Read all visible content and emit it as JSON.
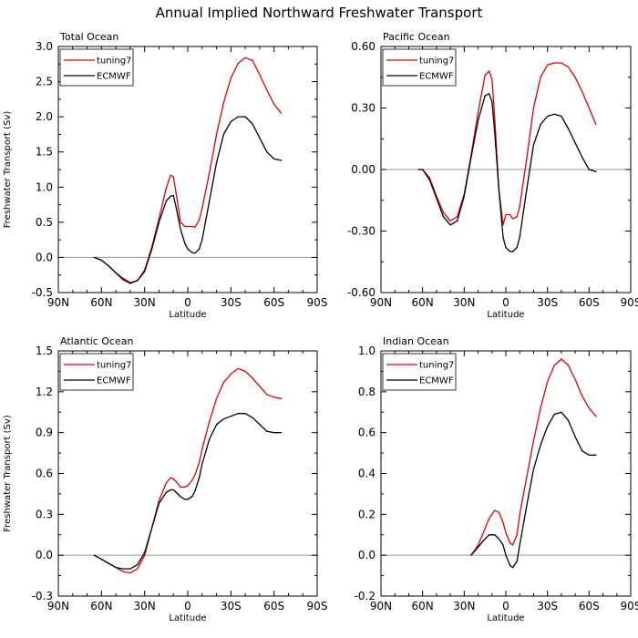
{
  "figure_title": "Annual Implied Northward Freshwater Transport",
  "chart_data": [
    {
      "type": "line",
      "title": "Total Ocean",
      "xlabel": "Latitude",
      "ylabel": "Freshwater Transport (Sv)",
      "xlim": [
        -90,
        90
      ],
      "x_tick_values": [
        -90,
        -60,
        -30,
        0,
        30,
        60,
        90
      ],
      "x_tick_labels": [
        "90N",
        "60N",
        "30N",
        "0",
        "30S",
        "60S",
        "90S"
      ],
      "ylim": [
        -0.5,
        3.0
      ],
      "y_tick_values": [
        -0.5,
        0.0,
        0.5,
        1.0,
        1.5,
        2.0,
        2.5,
        3.0
      ],
      "y_tick_labels": [
        "-0.5",
        "0.0",
        "0.5",
        "1.0",
        "1.5",
        "2.0",
        "2.5",
        "3.0"
      ],
      "zero_line": true,
      "legend_position": "top-left",
      "series": [
        {
          "name": "tuning7",
          "color": "#e00000",
          "x": [
            -65,
            -60,
            -55,
            -50,
            -45,
            -40,
            -35,
            -30,
            -25,
            -20,
            -15,
            -12,
            -10,
            -8,
            -5,
            -2,
            0,
            3,
            5,
            8,
            10,
            15,
            20,
            25,
            30,
            35,
            40,
            45,
            50,
            55,
            60,
            65
          ],
          "y": [
            0.0,
            -0.04,
            -0.12,
            -0.22,
            -0.32,
            -0.37,
            -0.33,
            -0.18,
            0.15,
            0.55,
            0.98,
            1.17,
            1.15,
            0.9,
            0.5,
            0.44,
            0.44,
            0.44,
            0.43,
            0.53,
            0.7,
            1.2,
            1.75,
            2.2,
            2.55,
            2.76,
            2.84,
            2.8,
            2.6,
            2.38,
            2.18,
            2.05
          ]
        },
        {
          "name": "ECMWF",
          "color": "#000000",
          "x": [
            -65,
            -60,
            -55,
            -50,
            -45,
            -40,
            -35,
            -30,
            -25,
            -20,
            -15,
            -12,
            -10,
            -8,
            -5,
            -2,
            0,
            3,
            5,
            8,
            10,
            15,
            20,
            25,
            30,
            35,
            40,
            45,
            50,
            55,
            60,
            65
          ],
          "y": [
            0.0,
            -0.04,
            -0.12,
            -0.22,
            -0.3,
            -0.36,
            -0.33,
            -0.2,
            0.12,
            0.5,
            0.8,
            0.87,
            0.88,
            0.7,
            0.4,
            0.2,
            0.12,
            0.07,
            0.06,
            0.12,
            0.25,
            0.8,
            1.35,
            1.75,
            1.93,
            2.0,
            2.0,
            1.9,
            1.7,
            1.5,
            1.4,
            1.38
          ]
        }
      ]
    },
    {
      "type": "line",
      "title": "Pacific Ocean",
      "xlabel": "Latitude",
      "ylabel": "",
      "xlim": [
        -90,
        90
      ],
      "x_tick_values": [
        -90,
        -60,
        -30,
        0,
        30,
        60,
        90
      ],
      "x_tick_labels": [
        "90N",
        "60N",
        "30N",
        "0",
        "30S",
        "60S",
        "90S"
      ],
      "ylim": [
        -0.6,
        0.6
      ],
      "y_tick_values": [
        -0.6,
        -0.3,
        0.0,
        0.3,
        0.6
      ],
      "y_tick_labels": [
        "-0.60",
        "-0.30",
        "0.00",
        "0.30",
        "0.60"
      ],
      "zero_line": true,
      "legend_position": "top-left",
      "series": [
        {
          "name": "tuning7",
          "color": "#e00000",
          "x": [
            -63,
            -60,
            -55,
            -50,
            -45,
            -40,
            -35,
            -30,
            -25,
            -20,
            -15,
            -12,
            -10,
            -8,
            -5,
            -2,
            0,
            3,
            5,
            8,
            10,
            15,
            20,
            25,
            30,
            35,
            40,
            45,
            50,
            55,
            60,
            65
          ],
          "y": [
            0.0,
            0.0,
            -0.04,
            -0.13,
            -0.21,
            -0.25,
            -0.23,
            -0.12,
            0.07,
            0.28,
            0.46,
            0.48,
            0.44,
            0.25,
            -0.1,
            -0.27,
            -0.22,
            -0.22,
            -0.24,
            -0.23,
            -0.18,
            0.05,
            0.3,
            0.45,
            0.51,
            0.52,
            0.52,
            0.5,
            0.45,
            0.38,
            0.3,
            0.22
          ]
        },
        {
          "name": "ECMWF",
          "color": "#000000",
          "x": [
            -63,
            -60,
            -55,
            -50,
            -45,
            -40,
            -35,
            -30,
            -25,
            -20,
            -15,
            -12,
            -10,
            -8,
            -5,
            -2,
            0,
            3,
            5,
            8,
            10,
            15,
            20,
            25,
            30,
            35,
            40,
            45,
            50,
            55,
            60,
            65
          ],
          "y": [
            0.0,
            0.0,
            -0.05,
            -0.14,
            -0.23,
            -0.27,
            -0.25,
            -0.13,
            0.06,
            0.24,
            0.36,
            0.37,
            0.33,
            0.18,
            -0.1,
            -0.33,
            -0.38,
            -0.4,
            -0.4,
            -0.38,
            -0.33,
            -0.1,
            0.12,
            0.22,
            0.26,
            0.27,
            0.26,
            0.2,
            0.13,
            0.06,
            0.0,
            -0.01
          ]
        }
      ]
    },
    {
      "type": "line",
      "title": "Atlantic Ocean",
      "xlabel": "Latitude",
      "ylabel": "Freshwater Transport (Sv)",
      "xlim": [
        -90,
        90
      ],
      "x_tick_values": [
        -90,
        -60,
        -30,
        0,
        30,
        60,
        90
      ],
      "x_tick_labels": [
        "90N",
        "60N",
        "30N",
        "0",
        "30S",
        "60S",
        "90S"
      ],
      "ylim": [
        -0.3,
        1.5
      ],
      "y_tick_values": [
        -0.3,
        0.0,
        0.3,
        0.6,
        0.9,
        1.2,
        1.5
      ],
      "y_tick_labels": [
        "-0.3",
        "0.0",
        "0.3",
        "0.6",
        "0.9",
        "1.2",
        "1.5"
      ],
      "zero_line": true,
      "legend_position": "top-left",
      "series": [
        {
          "name": "tuning7",
          "color": "#e00000",
          "x": [
            -65,
            -60,
            -55,
            -50,
            -45,
            -40,
            -35,
            -30,
            -25,
            -20,
            -15,
            -12,
            -10,
            -8,
            -5,
            -2,
            0,
            3,
            5,
            8,
            10,
            15,
            20,
            25,
            30,
            35,
            40,
            45,
            50,
            55,
            60,
            65
          ],
          "y": [
            0.0,
            -0.03,
            -0.06,
            -0.09,
            -0.12,
            -0.13,
            -0.1,
            0.0,
            0.2,
            0.4,
            0.53,
            0.57,
            0.56,
            0.54,
            0.5,
            0.5,
            0.51,
            0.55,
            0.59,
            0.68,
            0.78,
            0.98,
            1.15,
            1.27,
            1.33,
            1.37,
            1.35,
            1.3,
            1.24,
            1.18,
            1.16,
            1.15
          ]
        },
        {
          "name": "ECMWF",
          "color": "#000000",
          "x": [
            -65,
            -60,
            -55,
            -50,
            -45,
            -40,
            -35,
            -30,
            -25,
            -20,
            -15,
            -12,
            -10,
            -8,
            -5,
            -2,
            0,
            3,
            5,
            8,
            10,
            15,
            20,
            25,
            30,
            35,
            40,
            45,
            50,
            55,
            60,
            65
          ],
          "y": [
            0.0,
            -0.03,
            -0.06,
            -0.09,
            -0.1,
            -0.1,
            -0.07,
            0.02,
            0.2,
            0.38,
            0.46,
            0.48,
            0.48,
            0.46,
            0.43,
            0.41,
            0.41,
            0.43,
            0.47,
            0.57,
            0.67,
            0.85,
            0.96,
            1.0,
            1.02,
            1.04,
            1.04,
            1.01,
            0.96,
            0.91,
            0.9,
            0.9
          ]
        }
      ]
    },
    {
      "type": "line",
      "title": "Indian Ocean",
      "xlabel": "Latitude",
      "ylabel": "",
      "xlim": [
        -90,
        90
      ],
      "x_tick_values": [
        -90,
        -60,
        -30,
        0,
        30,
        60,
        90
      ],
      "x_tick_labels": [
        "90N",
        "60N",
        "30N",
        "0",
        "30S",
        "60S",
        "90S"
      ],
      "ylim": [
        -0.2,
        1.0
      ],
      "y_tick_values": [
        -0.2,
        0.0,
        0.2,
        0.4,
        0.6,
        0.8,
        1.0
      ],
      "y_tick_labels": [
        "-0.2",
        "0.0",
        "0.2",
        "0.4",
        "0.6",
        "0.8",
        "1.0"
      ],
      "zero_line": true,
      "legend_position": "top-left",
      "series": [
        {
          "name": "tuning7",
          "color": "#e00000",
          "x": [
            -25,
            -20,
            -15,
            -12,
            -10,
            -8,
            -5,
            -2,
            0,
            3,
            5,
            8,
            10,
            15,
            20,
            25,
            30,
            35,
            40,
            45,
            50,
            55,
            60,
            65
          ],
          "y": [
            0.0,
            0.05,
            0.13,
            0.18,
            0.2,
            0.22,
            0.21,
            0.16,
            0.11,
            0.06,
            0.05,
            0.1,
            0.2,
            0.38,
            0.56,
            0.72,
            0.85,
            0.93,
            0.96,
            0.93,
            0.86,
            0.78,
            0.72,
            0.68
          ]
        },
        {
          "name": "ECMWF",
          "color": "#000000",
          "x": [
            -25,
            -20,
            -15,
            -12,
            -10,
            -8,
            -5,
            -2,
            0,
            3,
            5,
            8,
            10,
            15,
            20,
            25,
            30,
            35,
            40,
            45,
            50,
            55,
            60,
            65
          ],
          "y": [
            0.0,
            0.04,
            0.08,
            0.1,
            0.1,
            0.1,
            0.08,
            0.05,
            0.0,
            -0.05,
            -0.06,
            -0.03,
            0.05,
            0.24,
            0.42,
            0.54,
            0.63,
            0.69,
            0.7,
            0.66,
            0.58,
            0.51,
            0.49,
            0.49
          ]
        }
      ]
    }
  ]
}
